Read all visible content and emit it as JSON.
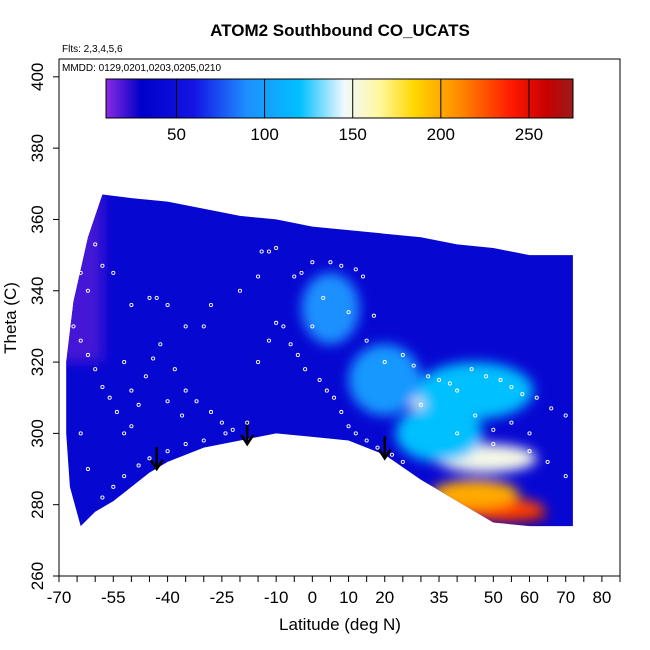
{
  "chart_data": {
    "type": "heatmap",
    "title": "ATOM2 Southbound CO_UCATS",
    "subtitle_lines": [
      "Flts: 2,3,4,5,6",
      "MMDD: 0129,0201,0203,0205,0210"
    ],
    "xlabel": "Latitude (deg N)",
    "ylabel": "Theta (C)",
    "xlim": [
      -70,
      85
    ],
    "ylim": [
      260,
      405
    ],
    "x_ticks_major": [
      -70,
      -55,
      -40,
      -25,
      -10,
      0,
      10,
      20,
      35,
      50,
      60,
      70,
      80
    ],
    "x_ticks_major_labels": [
      "-70",
      "-55",
      "-40",
      "-25",
      "-10",
      "0",
      "10",
      "20",
      "35",
      "50",
      "60",
      "70",
      "80"
    ],
    "y_ticks": [
      260,
      280,
      300,
      320,
      340,
      360,
      380,
      400
    ],
    "y_tick_labels": [
      "260",
      "280",
      "300",
      "320",
      "340",
      "360",
      "380",
      "400"
    ],
    "colorbar": {
      "min": 10,
      "max": 275,
      "ticks": [
        50,
        100,
        150,
        200,
        250
      ],
      "tick_labels": [
        "50",
        "100",
        "150",
        "200",
        "250"
      ],
      "stops": [
        {
          "v": 10,
          "c": "#8a2be2"
        },
        {
          "v": 30,
          "c": "#0000c8"
        },
        {
          "v": 60,
          "c": "#1414e6"
        },
        {
          "v": 90,
          "c": "#1e90ff"
        },
        {
          "v": 120,
          "c": "#00c0ff"
        },
        {
          "v": 145,
          "c": "#f0f8ff"
        },
        {
          "v": 165,
          "c": "#fff8a0"
        },
        {
          "v": 185,
          "c": "#ffd700"
        },
        {
          "v": 210,
          "c": "#ff8c00"
        },
        {
          "v": 240,
          "c": "#ff1a00"
        },
        {
          "v": 260,
          "c": "#c80000"
        },
        {
          "v": 275,
          "c": "#9b1b1b"
        }
      ]
    },
    "surface_boundary": [
      {
        "lat": -64,
        "theta": 274
      },
      {
        "lat": -60,
        "theta": 278
      },
      {
        "lat": -55,
        "theta": 281
      },
      {
        "lat": -50,
        "theta": 285
      },
      {
        "lat": -45,
        "theta": 289
      },
      {
        "lat": -40,
        "theta": 292
      },
      {
        "lat": -30,
        "theta": 296
      },
      {
        "lat": -20,
        "theta": 298
      },
      {
        "lat": -10,
        "theta": 300
      },
      {
        "lat": 0,
        "theta": 299
      },
      {
        "lat": 10,
        "theta": 298
      },
      {
        "lat": 20,
        "theta": 294
      },
      {
        "lat": 30,
        "theta": 287
      },
      {
        "lat": 40,
        "theta": 281
      },
      {
        "lat": 50,
        "theta": 275
      },
      {
        "lat": 60,
        "theta": 274
      },
      {
        "lat": 72,
        "theta": 274
      }
    ],
    "top_boundary": [
      {
        "lat": -66,
        "theta": 337
      },
      {
        "lat": -62,
        "theta": 355
      },
      {
        "lat": -58,
        "theta": 367
      },
      {
        "lat": -50,
        "theta": 366
      },
      {
        "lat": -40,
        "theta": 365
      },
      {
        "lat": -30,
        "theta": 363
      },
      {
        "lat": -20,
        "theta": 361
      },
      {
        "lat": -10,
        "theta": 360
      },
      {
        "lat": 0,
        "theta": 358
      },
      {
        "lat": 10,
        "theta": 357
      },
      {
        "lat": 20,
        "theta": 356
      },
      {
        "lat": 30,
        "theta": 355
      },
      {
        "lat": 40,
        "theta": 353
      },
      {
        "lat": 50,
        "theta": 352
      },
      {
        "lat": 60,
        "theta": 350
      },
      {
        "lat": 72,
        "theta": 350
      }
    ],
    "left_boundary": [
      {
        "lat": -66,
        "theta": 337
      },
      {
        "lat": -68,
        "theta": 320
      },
      {
        "lat": -68,
        "theta": 300
      },
      {
        "lat": -67,
        "theta": 285
      },
      {
        "lat": -64,
        "theta": 274
      }
    ],
    "field_hotspots": [
      {
        "lat": 55,
        "theta": 277,
        "value": 265,
        "rx": 10,
        "ry": 2
      },
      {
        "lat": 50,
        "theta": 279,
        "value": 230,
        "rx": 14,
        "ry": 3
      },
      {
        "lat": 45,
        "theta": 283,
        "value": 200,
        "rx": 12,
        "ry": 4
      },
      {
        "lat": 48,
        "theta": 293,
        "value": 150,
        "rx": 14,
        "ry": 4
      },
      {
        "lat": 30,
        "theta": 310,
        "value": 150,
        "rx": 6,
        "ry": 3
      },
      {
        "lat": 35,
        "theta": 300,
        "value": 120,
        "rx": 12,
        "ry": 8
      },
      {
        "lat": 45,
        "theta": 312,
        "value": 120,
        "rx": 16,
        "ry": 8
      },
      {
        "lat": 5,
        "theta": 335,
        "value": 90,
        "rx": 8,
        "ry": 10
      },
      {
        "lat": 20,
        "theta": 315,
        "value": 95,
        "rx": 10,
        "ry": 10
      }
    ],
    "arrows": [
      {
        "lat": -43,
        "theta_tip": 290
      },
      {
        "lat": -18,
        "theta_tip": 297
      },
      {
        "lat": 20,
        "theta_tip": 293
      }
    ],
    "sample_points": [
      [
        -60,
        353
      ],
      [
        -58,
        347
      ],
      [
        -55,
        345
      ],
      [
        -50,
        336
      ],
      [
        -45,
        338
      ],
      [
        -43,
        338
      ],
      [
        -40,
        336
      ],
      [
        -35,
        330
      ],
      [
        -30,
        330
      ],
      [
        -28,
        336
      ],
      [
        -20,
        340
      ],
      [
        -15,
        344
      ],
      [
        -14,
        351
      ],
      [
        -12,
        351
      ],
      [
        -10,
        352
      ],
      [
        -5,
        344
      ],
      [
        -3,
        345
      ],
      [
        0,
        348
      ],
      [
        5,
        348
      ],
      [
        8,
        347
      ],
      [
        12,
        346
      ],
      [
        14,
        344
      ],
      [
        17,
        333
      ],
      [
        20,
        320
      ],
      [
        25,
        322
      ],
      [
        28,
        319
      ],
      [
        32,
        316
      ],
      [
        35,
        315
      ],
      [
        38,
        314
      ],
      [
        40,
        312
      ],
      [
        44,
        318
      ],
      [
        48,
        316
      ],
      [
        52,
        315
      ],
      [
        55,
        313
      ],
      [
        58,
        311
      ],
      [
        62,
        310
      ],
      [
        66,
        307
      ],
      [
        70,
        305
      ],
      [
        60,
        300
      ],
      [
        55,
        303
      ],
      [
        50,
        301
      ],
      [
        45,
        305
      ],
      [
        -66,
        330
      ],
      [
        -64,
        326
      ],
      [
        -62,
        322
      ],
      [
        -60,
        318
      ],
      [
        -58,
        313
      ],
      [
        -56,
        310
      ],
      [
        -54,
        306
      ],
      [
        -52,
        300
      ],
      [
        -50,
        302
      ],
      [
        -48,
        308
      ],
      [
        -46,
        316
      ],
      [
        -44,
        321
      ],
      [
        -42,
        325
      ],
      [
        -38,
        318
      ],
      [
        -35,
        312
      ],
      [
        -32,
        309
      ],
      [
        -28,
        306
      ],
      [
        -25,
        303
      ],
      [
        -22,
        301
      ],
      [
        -18,
        303
      ],
      [
        -15,
        320
      ],
      [
        -12,
        326
      ],
      [
        -10,
        331
      ],
      [
        -8,
        330
      ],
      [
        -6,
        325
      ],
      [
        -4,
        322
      ],
      [
        -2,
        318
      ],
      [
        2,
        315
      ],
      [
        4,
        312
      ],
      [
        6,
        310
      ],
      [
        8,
        306
      ],
      [
        10,
        302
      ],
      [
        12,
        300
      ],
      [
        15,
        298
      ],
      [
        18,
        296
      ],
      [
        22,
        294
      ],
      [
        25,
        292
      ],
      [
        -64,
        300
      ],
      [
        -62,
        290
      ],
      [
        -58,
        282
      ],
      [
        -55,
        285
      ],
      [
        -52,
        288
      ],
      [
        -48,
        291
      ],
      [
        -45,
        293
      ],
      [
        -40,
        295
      ],
      [
        -35,
        297
      ],
      [
        -30,
        298
      ],
      [
        -24,
        300
      ],
      [
        -62,
        340
      ],
      [
        -64,
        345
      ],
      [
        -52,
        320
      ],
      [
        -50,
        312
      ],
      [
        -40,
        309
      ],
      [
        -36,
        305
      ],
      [
        0,
        330
      ],
      [
        3,
        338
      ],
      [
        10,
        334
      ],
      [
        15,
        326
      ],
      [
        30,
        308
      ],
      [
        40,
        300
      ],
      [
        50,
        297
      ],
      [
        60,
        295
      ],
      [
        65,
        292
      ],
      [
        70,
        288
      ]
    ]
  }
}
